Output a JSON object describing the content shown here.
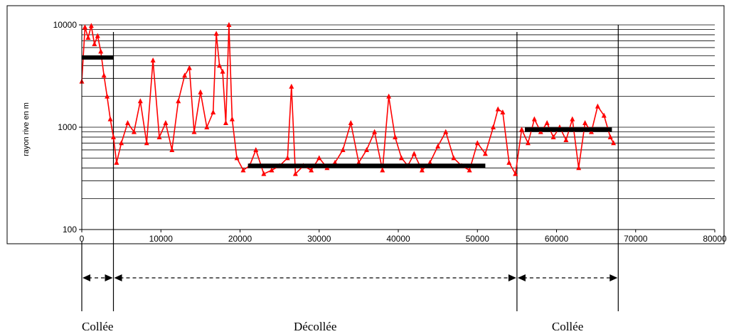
{
  "chart_data": {
    "type": "line",
    "title": "",
    "xlabel": "",
    "ylabel": "rayon rive en m",
    "xlim": [
      0,
      80000
    ],
    "ylim": [
      100,
      10000
    ],
    "yscale": "log",
    "x_ticks": [
      "0",
      "10000",
      "20000",
      "30000",
      "40000",
      "50000",
      "60000",
      "70000",
      "80000"
    ],
    "y_ticks": [
      "100",
      "1000",
      "10000"
    ],
    "grid": "horizontal",
    "legend": "none",
    "colors": {
      "series": "#ff0000",
      "mean": "#000000",
      "frame": "#000000",
      "grid": "#000000"
    },
    "series": [
      {
        "marker": "triangle",
        "x": [
          0,
          400,
          800,
          1200,
          1600,
          2000,
          2400,
          2800,
          3200,
          3600,
          4000,
          4400,
          5000,
          5800,
          6600,
          7400,
          8200,
          9000,
          9800,
          10600,
          11400,
          12200,
          13000,
          13600,
          14200,
          15000,
          15800,
          16600,
          17000,
          17400,
          17800,
          18200,
          18600,
          19000,
          19600,
          20400,
          21200,
          22000,
          23000,
          24000,
          25000,
          26000,
          26500,
          27000,
          28000,
          29000,
          30000,
          31000,
          32000,
          33000,
          34000,
          35000,
          36000,
          37000,
          38000,
          38800,
          39600,
          40400,
          41200,
          42000,
          43000,
          44000,
          45000,
          46000,
          47000,
          48000,
          49000,
          50000,
          51000,
          52000,
          52600,
          53200,
          54000,
          54800,
          55600,
          56400,
          57200,
          58000,
          58800,
          59600,
          60400,
          61200,
          62000,
          62800,
          63600,
          64400,
          65200,
          66000,
          66800,
          67200
        ],
        "values": [
          2800,
          9500,
          7500,
          9800,
          6500,
          7800,
          5500,
          3200,
          2000,
          1200,
          800,
          450,
          700,
          1100,
          900,
          1800,
          700,
          4500,
          800,
          1100,
          600,
          1800,
          3200,
          3800,
          900,
          2200,
          1000,
          1400,
          8200,
          4000,
          3500,
          1100,
          10000,
          1200,
          500,
          380,
          420,
          600,
          350,
          380,
          420,
          500,
          2500,
          350,
          420,
          380,
          500,
          400,
          450,
          600,
          1100,
          450,
          600,
          900,
          380,
          2000,
          800,
          500,
          420,
          550,
          380,
          450,
          650,
          900,
          500,
          420,
          380,
          700,
          550,
          1000,
          1500,
          1400,
          450,
          350,
          950,
          700,
          1200,
          900,
          1100,
          800,
          1000,
          750,
          1200,
          400,
          1100,
          900,
          1600,
          1300,
          800,
          700
        ]
      }
    ],
    "mean_lines": [
      {
        "x_start": 0,
        "x_end": 4000,
        "value": 4800
      },
      {
        "x_start": 21000,
        "x_end": 51000,
        "value": 420
      },
      {
        "x_start": 56000,
        "x_end": 67000,
        "value": 950
      }
    ],
    "boundaries": [
      0,
      4000,
      55000,
      67800
    ],
    "segments": [
      {
        "label": "Collée",
        "x_start": 0,
        "x_end": 4000
      },
      {
        "label": "Décollée",
        "x_start": 4000,
        "x_end": 55000
      },
      {
        "label": "Collée",
        "x_start": 55000,
        "x_end": 67800
      }
    ]
  }
}
